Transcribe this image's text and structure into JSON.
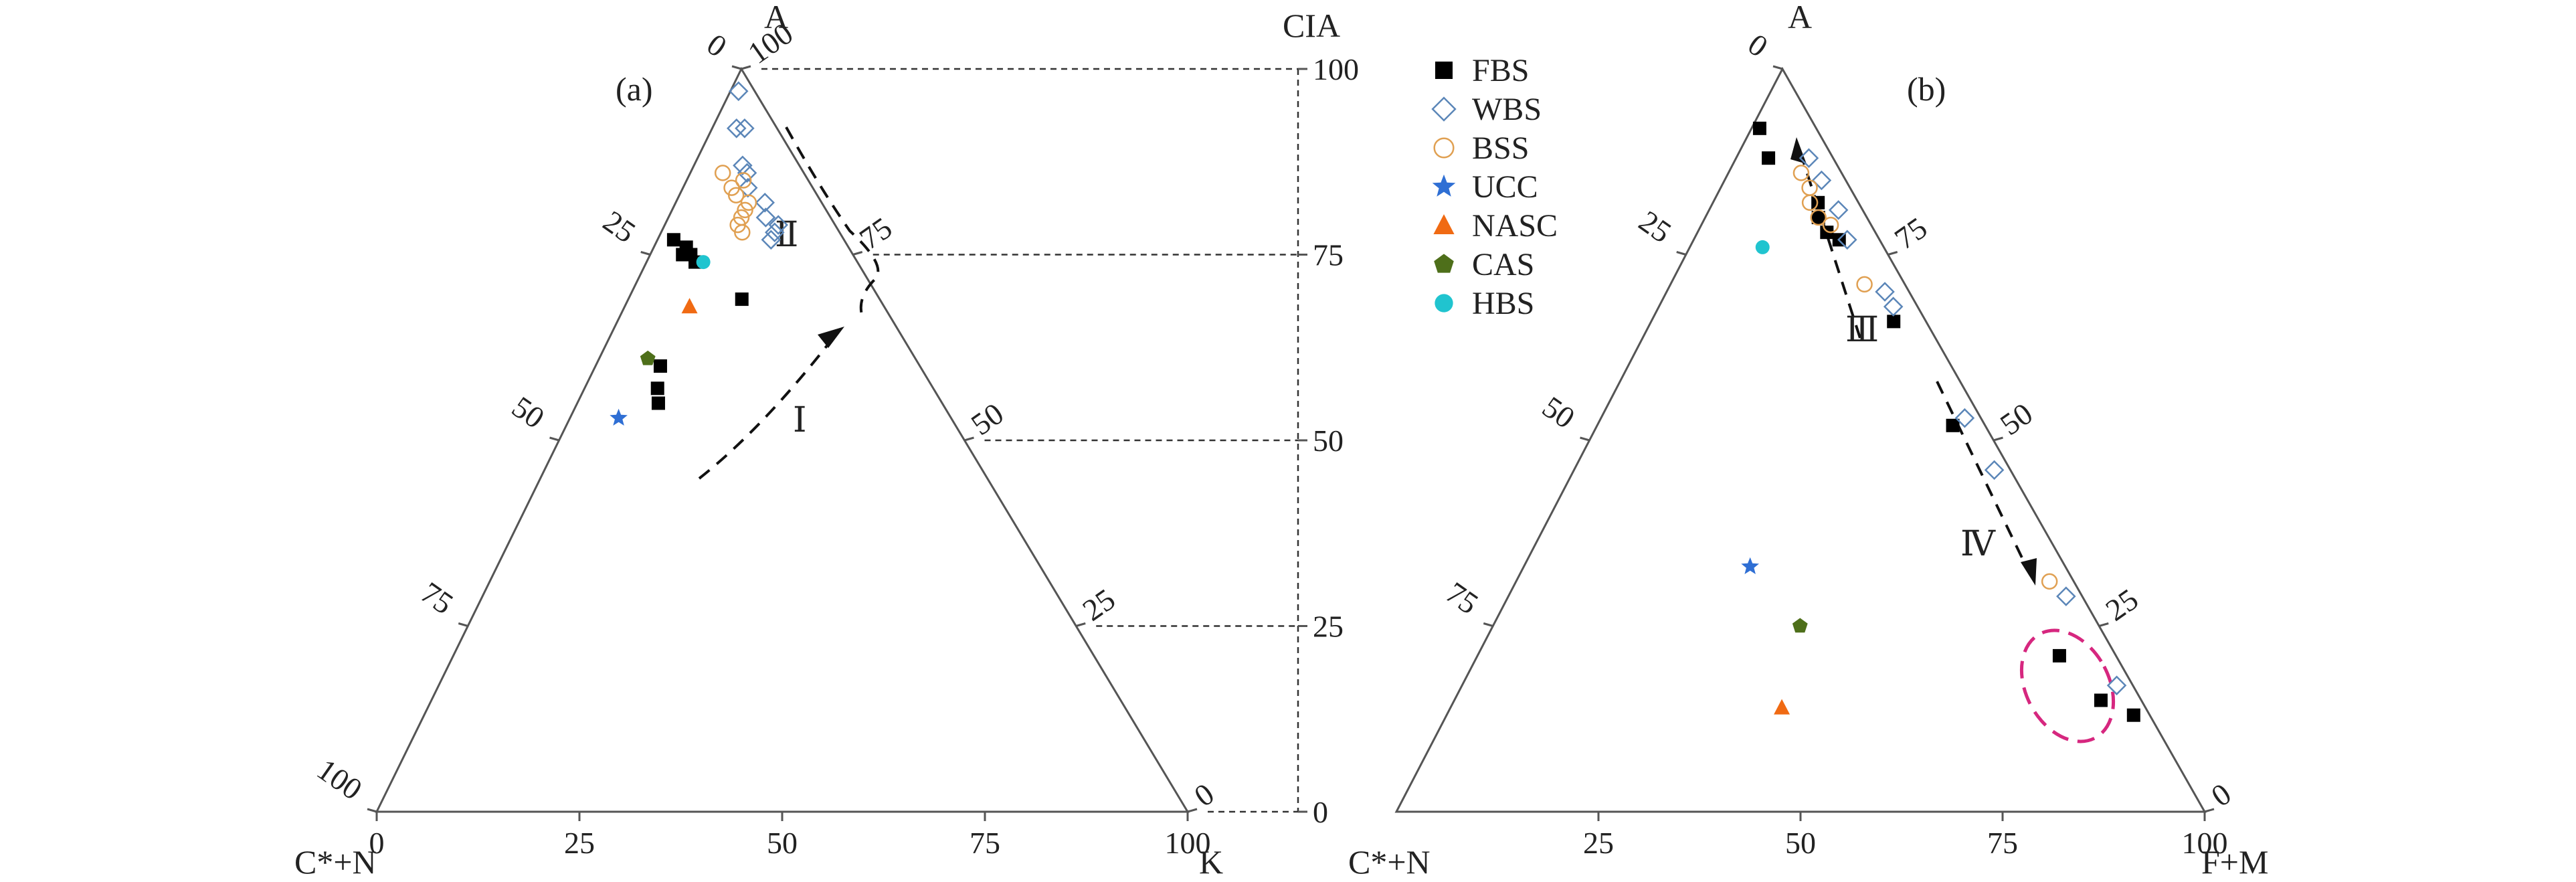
{
  "chart_data": [
    {
      "panel_label": "(a)",
      "type": "scatter",
      "plot_kind": "ternary",
      "vertices": {
        "top": "A",
        "left": "C*+N",
        "right": "K"
      },
      "tick_labels": {
        "bottom": [
          "0",
          "25",
          "50",
          "75",
          "100"
        ],
        "left": [
          "0",
          "25",
          "50",
          "75",
          "100"
        ],
        "right": [
          "100",
          "75",
          "50",
          "25",
          "0"
        ]
      },
      "cia_axis": {
        "label": "CIA",
        "ticks": [
          "100",
          "75",
          "50",
          "25",
          "0"
        ]
      },
      "trend_labels": [
        "Ⅰ",
        "Ⅱ"
      ],
      "series": [
        {
          "name": "FBS",
          "points": [
            [
              77,
              21,
              2
            ],
            [
              75,
              20,
              5
            ],
            [
              76,
              20,
              4
            ],
            [
              75,
              21,
              4
            ],
            [
              74,
              20,
              6
            ],
            [
              69,
              17,
              14
            ],
            [
              60,
              32,
              8
            ],
            [
              57,
              34,
              9
            ],
            [
              55,
              35,
              10
            ]
          ]
        },
        {
          "name": "WBS",
          "points": [
            [
              97,
              2,
              1
            ],
            [
              92,
              5,
              3
            ],
            [
              92,
              4,
              4
            ],
            [
              87,
              7,
              6
            ],
            [
              86,
              7,
              7
            ],
            [
              84,
              8,
              8
            ],
            [
              82,
              7,
              11
            ],
            [
              80,
              8,
              12
            ],
            [
              79,
              7,
              14
            ],
            [
              78,
              8,
              14
            ],
            [
              77,
              9,
              14
            ]
          ]
        },
        {
          "name": "BSS",
          "points": [
            [
              86,
              10,
              4
            ],
            [
              85,
              8,
              7
            ],
            [
              84,
              10,
              6
            ],
            [
              83,
              10,
              7
            ],
            [
              82,
              9,
              9
            ],
            [
              81,
              10,
              9
            ],
            [
              80,
              11,
              9
            ],
            [
              79,
              12,
              9
            ],
            [
              78,
              12,
              10
            ]
          ]
        },
        {
          "name": "UCC",
          "points": [
            [
              53,
              41,
              6
            ]
          ]
        },
        {
          "name": "NASC",
          "points": [
            [
              68,
              24,
              8
            ]
          ]
        },
        {
          "name": "CAS",
          "points": [
            [
              61,
              33,
              6
            ]
          ]
        },
        {
          "name": "HBS",
          "points": [
            [
              74,
              19,
              7
            ]
          ]
        }
      ]
    },
    {
      "panel_label": "(b)",
      "type": "scatter",
      "plot_kind": "ternary",
      "vertices": {
        "top": "A",
        "left": "C*+N",
        "right": "F+M"
      },
      "tick_labels": {
        "bottom": [
          "25",
          "50",
          "75",
          "100"
        ],
        "left": [
          "0",
          "25",
          "50",
          "75"
        ],
        "right": [
          "75",
          "50",
          "25",
          "0"
        ]
      },
      "trend_labels": [
        "Ⅲ",
        "Ⅳ"
      ],
      "series": [
        {
          "name": "FBS",
          "points": [
            [
              92,
              7,
              1
            ],
            [
              88,
              8,
              4
            ],
            [
              82,
              5,
              13
            ],
            [
              80,
              6,
              14
            ],
            [
              77,
              5,
              18
            ],
            [
              78,
              6,
              16
            ],
            [
              66,
              4,
              30
            ],
            [
              52,
              4,
              44
            ],
            [
              21,
              7,
              72
            ],
            [
              15,
              5,
              80
            ],
            [
              13,
              2,
              85
            ]
          ]
        },
        {
          "name": "WBS",
          "points": [
            [
              88,
              3,
              9
            ],
            [
              85,
              3,
              12
            ],
            [
              81,
              3,
              16
            ],
            [
              77,
              4,
              19
            ],
            [
              70,
              3,
              27
            ],
            [
              68,
              3,
              29
            ],
            [
              53,
              2,
              45
            ],
            [
              46,
              2,
              52
            ],
            [
              29,
              2,
              69
            ],
            [
              17,
              2,
              81
            ]
          ]
        },
        {
          "name": "BSS",
          "points": [
            [
              86,
              5,
              9
            ],
            [
              84,
              5,
              11
            ],
            [
              82,
              6,
              12
            ],
            [
              80,
              6,
              14
            ],
            [
              79,
              5,
              16
            ],
            [
              71,
              5,
              24
            ],
            [
              31,
              3,
              66
            ]
          ]
        },
        {
          "name": "UCC",
          "points": [
            [
              33,
              39,
              28
            ]
          ]
        },
        {
          "name": "NASC",
          "points": [
            [
              14,
              45,
              41
            ]
          ]
        },
        {
          "name": "CAS",
          "points": [
            [
              25,
              37,
              38
            ]
          ]
        },
        {
          "name": "HBS",
          "points": [
            [
              76,
              15,
              9
            ]
          ]
        }
      ]
    }
  ],
  "legend": [
    {
      "name": "FBS",
      "marker": "square-filled",
      "color": "#000000"
    },
    {
      "name": "WBS",
      "marker": "diamond-open",
      "color": "#5b86b8"
    },
    {
      "name": "BSS",
      "marker": "circle-open",
      "color": "#e0a052"
    },
    {
      "name": "UCC",
      "marker": "star-filled",
      "color": "#2f6fd4"
    },
    {
      "name": "NASC",
      "marker": "triangle-filled",
      "color": "#f06a13"
    },
    {
      "name": "CAS",
      "marker": "pentagon-filled",
      "color": "#4e6f1a"
    },
    {
      "name": "HBS",
      "marker": "circle-filled",
      "color": "#20c4cf"
    }
  ]
}
